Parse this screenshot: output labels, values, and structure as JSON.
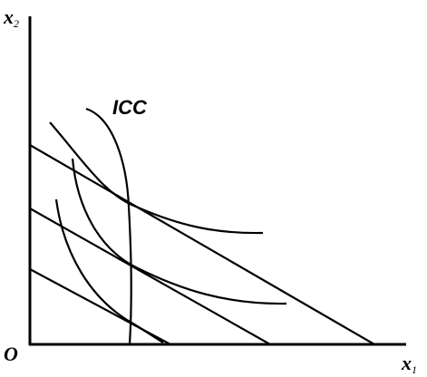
{
  "axes": {
    "y": {
      "text": "x",
      "subscript": "2"
    },
    "x": {
      "text": "x",
      "subscript": "1"
    },
    "origin": "O"
  },
  "curves": {
    "income_consumption": "ICC"
  }
}
